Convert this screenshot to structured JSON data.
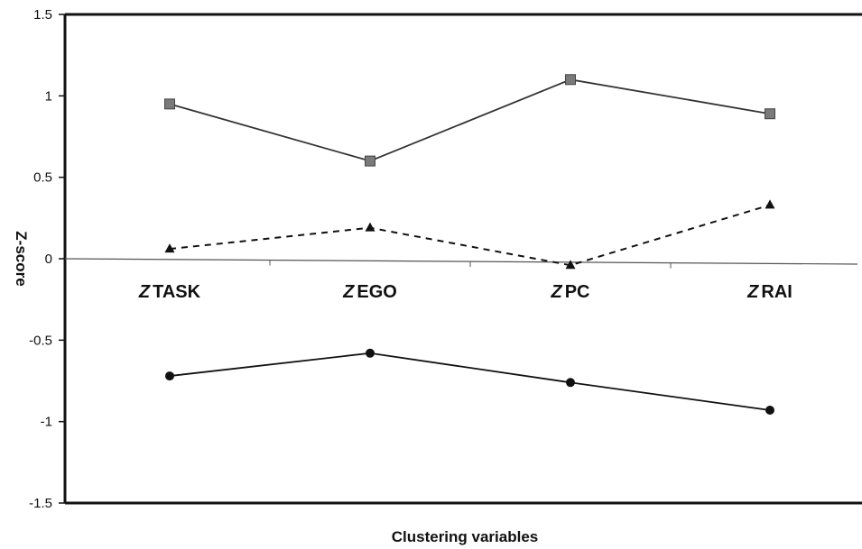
{
  "chart_data": {
    "type": "line",
    "title": "",
    "xlabel": "Clustering variables",
    "ylabel": "Z-score",
    "categories": [
      "Z TASK",
      "Z EGO",
      "Z PC",
      "Z RAI"
    ],
    "category_prefix": "Z",
    "category_names": [
      "TASK",
      "EGO",
      "PC",
      "RAI"
    ],
    "ylim": [
      -1.5,
      1.5
    ],
    "yticks": [
      "1.5",
      "1",
      "0.5",
      "0",
      "-0.5",
      "-1",
      "-1.5"
    ],
    "grid": false,
    "legend": "none",
    "series": [
      {
        "values": [
          0.95,
          0.6,
          1.1,
          0.89
        ],
        "marker": "square",
        "line_style": "solid",
        "color": "#333333",
        "marker_color": "#7a7a7a"
      },
      {
        "values": [
          0.06,
          0.19,
          -0.04,
          0.33
        ],
        "marker": "triangle",
        "line_style": "dashed",
        "color": "#111111",
        "marker_color": "#111111"
      },
      {
        "values": [
          -0.72,
          -0.58,
          -0.76,
          -0.93
        ],
        "marker": "circle",
        "line_style": "solid",
        "color": "#111111",
        "marker_color": "#111111"
      }
    ]
  }
}
